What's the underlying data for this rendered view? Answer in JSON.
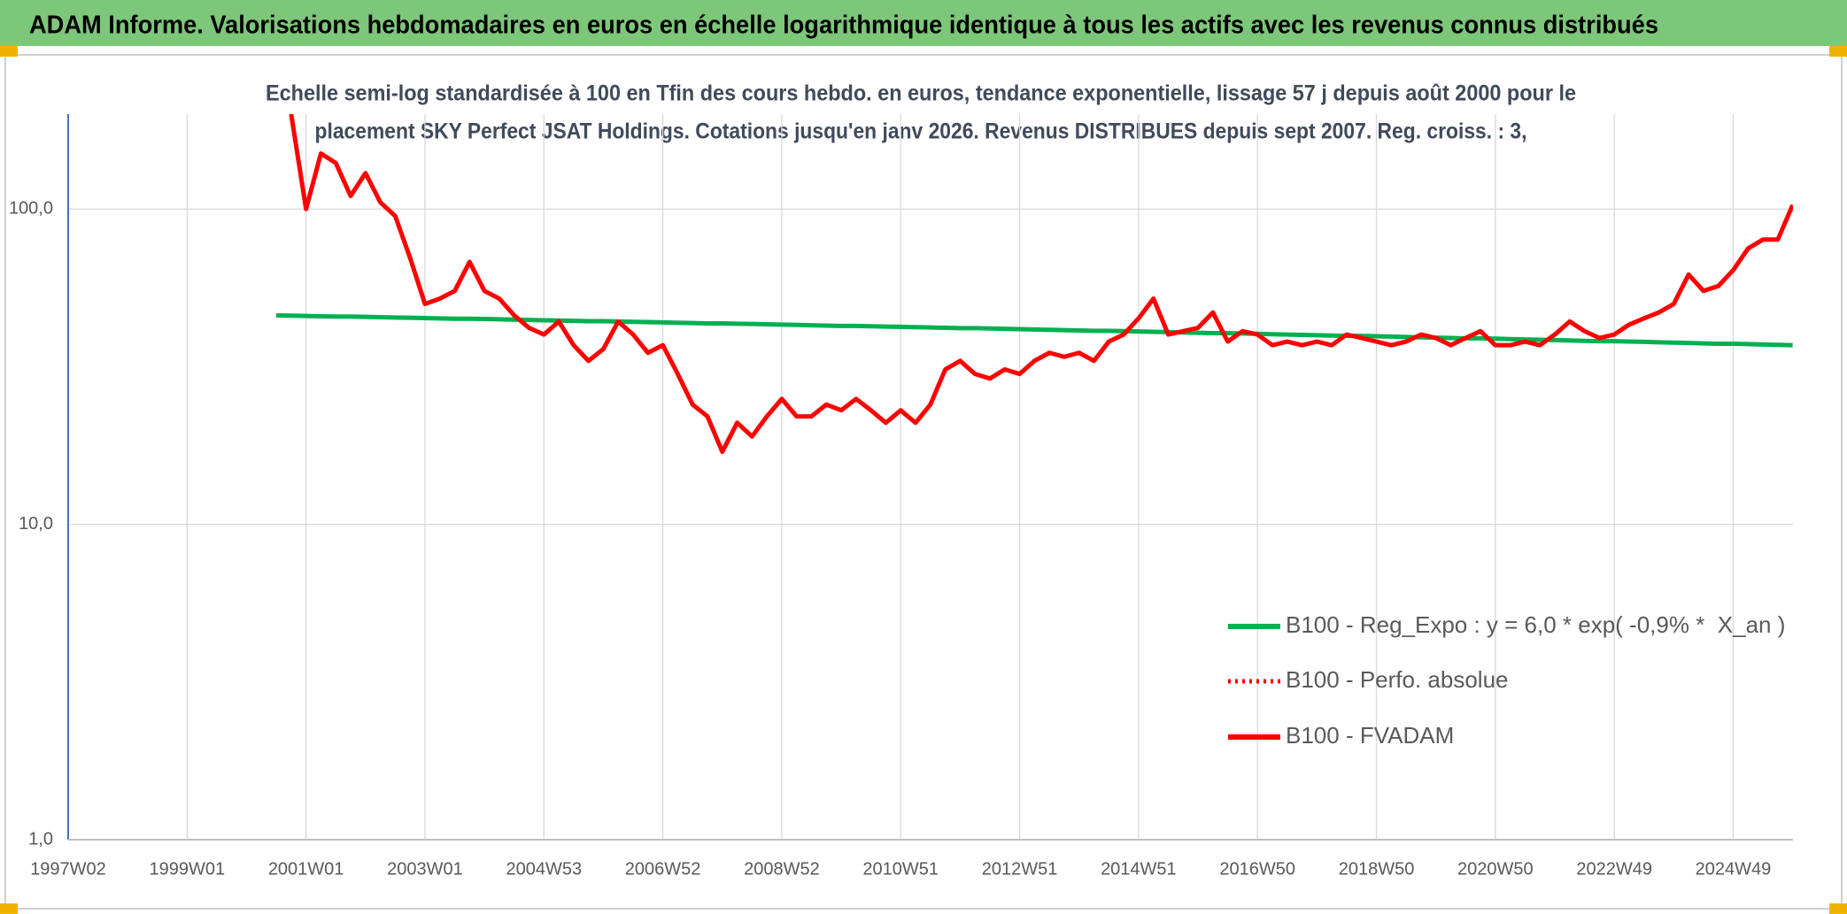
{
  "header": {
    "title": "ADAM Informe. Valorisations hebdomadaires en euros en échelle logarithmique identique à tous les actifs avec les revenus connus distribués"
  },
  "chart_data": {
    "type": "line",
    "subtitle": [
      "Echelle semi-log standardisée à 100 en Tfin des cours hebdo. en euros, tendance exponentielle, lissage 57 j depuis août 2000 pour le",
      "placement SKY Perfect JSAT Holdings. Cotations jusqu'en janv 2026. Revenus DISTRIBUES depuis sept 2007. Reg. croiss. : 3,"
    ],
    "categories": [
      "1997W02",
      null,
      null,
      null,
      null,
      null,
      null,
      null,
      "1999W01",
      null,
      null,
      null,
      null,
      null,
      null,
      null,
      "2001W01",
      null,
      null,
      null,
      null,
      null,
      null,
      null,
      "2003W01",
      null,
      null,
      null,
      null,
      null,
      null,
      null,
      "2004W53",
      null,
      null,
      null,
      null,
      null,
      null,
      null,
      "2006W52",
      null,
      null,
      null,
      null,
      null,
      null,
      null,
      "2008W52",
      null,
      null,
      null,
      null,
      null,
      null,
      null,
      "2010W51",
      null,
      null,
      null,
      null,
      null,
      null,
      null,
      "2012W51",
      null,
      null,
      null,
      null,
      null,
      null,
      null,
      "2014W51",
      null,
      null,
      null,
      null,
      null,
      null,
      null,
      "2016W50",
      null,
      null,
      null,
      null,
      null,
      null,
      null,
      "2018W50",
      null,
      null,
      null,
      null,
      null,
      null,
      null,
      "2020W50",
      null,
      null,
      null,
      null,
      null,
      null,
      null,
      "2022W49",
      null,
      null,
      null,
      null,
      null,
      null,
      null,
      "2024W49",
      null,
      null,
      null,
      null
    ],
    "series": [
      {
        "name": "B100 - Reg_Expo : y = 6,0 * exp( -0,9% *  X_an )",
        "color": "#00b050",
        "style": "solid",
        "values": [
          null,
          null,
          null,
          null,
          null,
          null,
          null,
          null,
          null,
          null,
          null,
          null,
          null,
          null,
          46.0,
          45.9,
          45.8,
          45.7,
          45.6,
          45.6,
          45.5,
          45.4,
          45.3,
          45.2,
          45.1,
          45.0,
          44.9,
          44.9,
          44.8,
          44.7,
          44.6,
          44.5,
          44.4,
          44.3,
          44.2,
          44.1,
          44.1,
          44.0,
          43.9,
          43.8,
          43.7,
          43.6,
          43.5,
          43.4,
          43.4,
          43.3,
          43.2,
          43.1,
          43.0,
          42.9,
          42.8,
          42.7,
          42.6,
          42.6,
          42.5,
          42.4,
          42.3,
          42.2,
          42.1,
          42.0,
          41.9,
          41.9,
          41.8,
          41.7,
          41.6,
          41.5,
          41.4,
          41.3,
          41.2,
          41.1,
          41.1,
          41.0,
          40.9,
          40.8,
          40.7,
          40.6,
          40.5,
          40.4,
          40.4,
          40.3,
          40.2,
          40.1,
          40.0,
          39.9,
          39.8,
          39.7,
          39.6,
          39.6,
          39.5,
          39.4,
          39.3,
          39.2,
          39.1,
          39.0,
          38.9,
          38.9,
          38.8,
          38.7,
          38.6,
          38.5,
          38.4,
          38.3,
          38.2,
          38.1,
          38.1,
          38.0,
          37.9,
          37.8,
          37.7,
          37.6,
          37.5,
          37.4,
          37.4,
          37.3,
          37.2,
          37.1,
          37.0
        ]
      },
      {
        "name": "B100 - Perfo. absolue",
        "color": "#ff0000",
        "style": "dotted",
        "values": [
          null,
          null,
          null,
          null,
          null,
          null,
          null,
          null,
          null,
          null,
          null,
          null,
          null,
          null,
          null,
          200,
          100,
          150,
          140,
          110,
          130,
          105,
          95,
          70,
          50,
          52,
          55,
          68,
          55,
          52,
          46,
          42,
          40,
          44,
          37,
          33,
          36,
          44,
          40,
          35,
          37,
          30,
          24,
          22,
          17,
          21,
          19,
          22,
          25,
          22,
          22,
          24,
          23,
          25,
          23,
          21,
          23,
          21,
          24,
          31,
          33,
          30,
          29,
          31,
          30,
          33,
          35,
          34,
          35,
          33,
          38,
          40,
          45,
          52,
          40,
          41,
          42,
          47,
          38,
          41,
          40,
          37,
          38,
          37,
          38,
          37,
          40,
          39,
          38,
          37,
          38,
          40,
          39,
          37,
          39,
          41,
          37,
          37,
          38,
          37,
          40,
          44,
          41,
          39,
          40,
          43,
          45,
          47,
          50,
          62,
          55,
          57,
          64,
          75,
          80,
          80,
          103
        ]
      },
      {
        "name": "B100 - FVADAM",
        "color": "#ff0000",
        "style": "solid",
        "values": [
          null,
          null,
          null,
          null,
          null,
          null,
          null,
          null,
          null,
          null,
          null,
          null,
          null,
          null,
          null,
          200,
          100,
          150,
          140,
          110,
          130,
          105,
          95,
          70,
          50,
          52,
          55,
          68,
          55,
          52,
          46,
          42,
          40,
          44,
          37,
          33,
          36,
          44,
          40,
          35,
          37,
          30,
          24,
          22,
          17,
          21,
          19,
          22,
          25,
          22,
          22,
          24,
          23,
          25,
          23,
          21,
          23,
          21,
          24,
          31,
          33,
          30,
          29,
          31,
          30,
          33,
          35,
          34,
          35,
          33,
          38,
          40,
          45,
          52,
          40,
          41,
          42,
          47,
          38,
          41,
          40,
          37,
          38,
          37,
          38,
          37,
          40,
          39,
          38,
          37,
          38,
          40,
          39,
          37,
          39,
          41,
          37,
          37,
          38,
          37,
          40,
          44,
          41,
          39,
          40,
          43,
          45,
          47,
          50,
          62,
          55,
          57,
          64,
          75,
          80,
          80,
          103
        ]
      }
    ],
    "ylim": [
      1,
      200
    ],
    "log_y": true,
    "yticks": [
      {
        "value": 1,
        "label": "1,0"
      },
      {
        "value": 10,
        "label": "10,0"
      },
      {
        "value": 100,
        "label": "100,0"
      }
    ],
    "grid": true
  }
}
